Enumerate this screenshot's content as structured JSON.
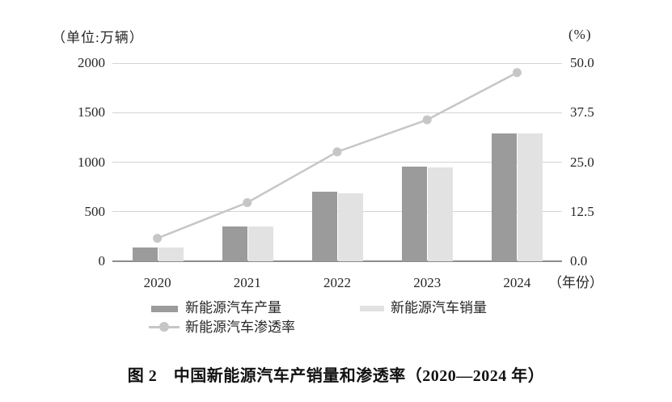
{
  "ui": {
    "caption": "图 2　中国新能源汽车产销量和渗透率（2020—2024 年）"
  },
  "colors": {
    "production_bar": "#9b9b9b",
    "sales_bar": "#e2e2e2",
    "penetration_line": "#c6c6c6",
    "gridline": "#d4d4d4",
    "axis_line": "#8c8c8c",
    "text": "#262626"
  },
  "chart_data": {
    "type": "bar",
    "title": "图 2　中国新能源汽车产销量和渗透率（2020—2024 年）",
    "categories": [
      "2020",
      "2021",
      "2022",
      "2023",
      "2024"
    ],
    "series": [
      {
        "name": "新能源汽车产量",
        "type": "bar",
        "axis": "left",
        "color": "#9b9b9b",
        "values": [
          136.6,
          354.5,
          705.8,
          958.7,
          1288.8
        ]
      },
      {
        "name": "新能源汽车销量",
        "type": "bar",
        "axis": "left",
        "color": "#e2e2e2",
        "values": [
          136.7,
          352.1,
          688.7,
          949.5,
          1286.6
        ]
      },
      {
        "name": "新能源汽车渗透率",
        "type": "line",
        "axis": "right",
        "color": "#c6c6c6",
        "values": [
          5.8,
          14.8,
          27.6,
          35.7,
          47.6
        ]
      }
    ],
    "left_axis": {
      "unit_label": "（单位:万辆）",
      "min": 0,
      "max": 2000,
      "ticks": [
        "2000",
        "1500",
        "1000",
        "500",
        "0"
      ]
    },
    "right_axis": {
      "unit_label": "(%)",
      "min": 0,
      "max": 50,
      "ticks": [
        "50.0",
        "37.5",
        "25.0",
        "12.5",
        "0.0"
      ]
    },
    "x_axis": {
      "suffix_label": "（年份）"
    },
    "grid": true,
    "legend_position": "bottom"
  }
}
